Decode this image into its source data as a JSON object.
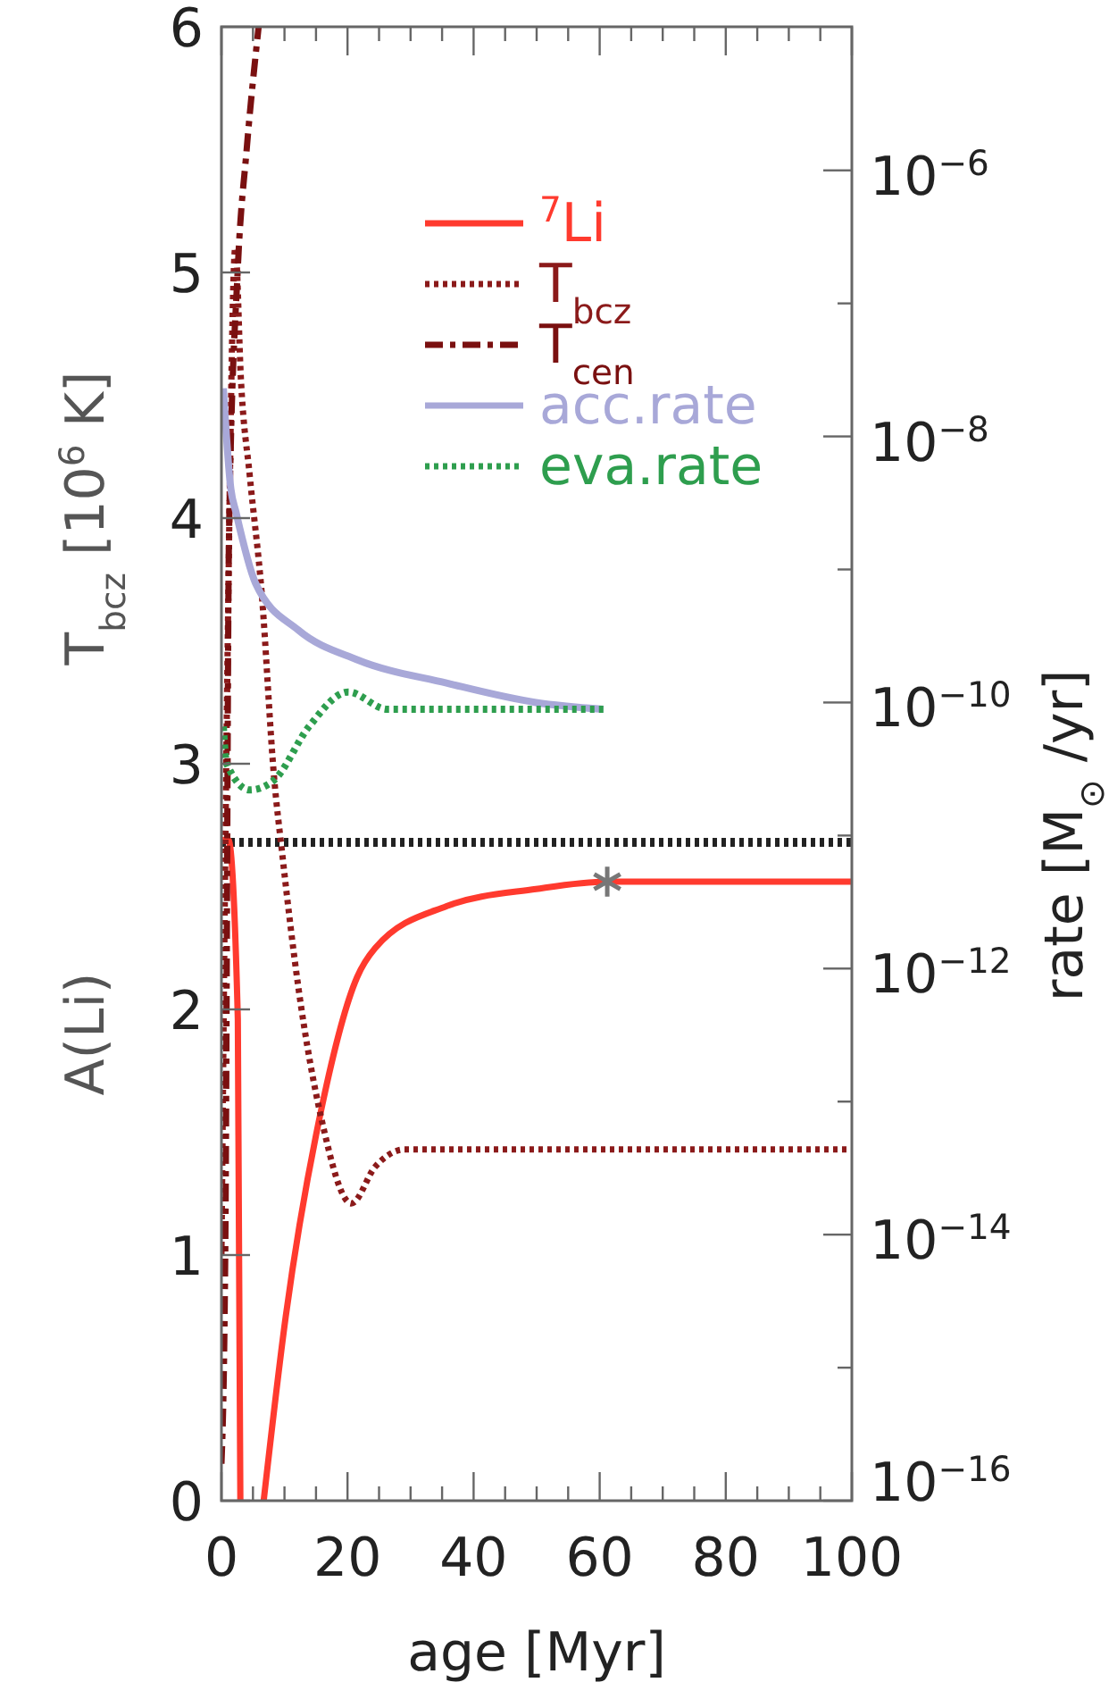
{
  "chart_data": {
    "type": "line",
    "xlabel": "age [Myr]",
    "ylabel": "T$_{bcz}$ [10$^{6}$ K]",
    "y2label": "rate [M$_{⊙}$ /yr]",
    "annotations": [
      "A(Li)"
    ],
    "legend": "top right",
    "log": "y2",
    "xlim": [
      0,
      100
    ],
    "xticks": [
      0,
      {
        "value": 5,
        "label": null
      },
      {
        "value": 10,
        "label": null
      },
      {
        "value": 15,
        "label": null
      },
      20,
      {
        "value": 25,
        "label": null
      },
      {
        "value": 30,
        "label": null
      },
      {
        "value": 35,
        "label": null
      },
      40,
      {
        "value": 45,
        "label": null
      },
      {
        "value": 50,
        "label": null
      },
      {
        "value": 55,
        "label": null
      },
      60,
      {
        "value": 65,
        "label": null
      },
      {
        "value": 70,
        "label": null
      },
      {
        "value": 75,
        "label": null
      },
      80,
      {
        "value": 85,
        "label": null
      },
      {
        "value": 90,
        "label": null
      },
      {
        "value": 95,
        "label": null
      },
      100
    ],
    "ylim": [
      0,
      6
    ],
    "yticks": [
      0,
      1,
      2,
      3,
      4,
      5,
      6
    ],
    "y2lim": [
      1e-16,
      1.2e-05
    ],
    "y2ticks": [
      {
        "value": 1e-16,
        "label": "10$^{−16}$"
      },
      {
        "value": 1e-15,
        "label": null
      },
      {
        "value": 1e-14,
        "label": "10$^{−14}$"
      },
      {
        "value": 1e-13,
        "label": null
      },
      {
        "value": 1e-12,
        "label": "10$^{−12}$"
      },
      {
        "value": 1e-11,
        "label": null
      },
      {
        "value": 1e-10,
        "label": "10$^{−10}$"
      },
      {
        "value": 1e-09,
        "label": null
      },
      {
        "value": 1e-08,
        "label": "10$^{−8}$"
      },
      {
        "value": 1e-07,
        "label": null
      },
      {
        "value": 1e-06,
        "label": "10$^{−6}$"
      }
    ],
    "ref_lines": [
      {
        "axis": "y",
        "value": 2.68,
        "color": "#222222",
        "line_style": "dotted"
      }
    ],
    "series": [
      {
        "name": "$^{7}$Li",
        "color": "#ff3a2e",
        "line_style": "solid",
        "x": [
          0,
          1.1,
          2.6,
          3.0,
          4.5,
          6.7,
          10.2,
          15.9,
          21.5,
          24.4,
          35.7,
          49.9,
          61.2,
          80,
          100
        ],
        "values": [
          2.69,
          2.69,
          1.96,
          0,
          null,
          0,
          0.75,
          1.6,
          2.13,
          2.25,
          2.42,
          2.49,
          2.52,
          2.52,
          2.52
        ]
      },
      {
        "name": "T$_{bcz}$",
        "color": "#8b1a1a",
        "line_style": "dotted",
        "x": [
          0,
          1,
          2.2,
          3.1,
          4.5,
          6.4,
          8.3,
          9.7,
          12.2,
          15.9,
          20.6,
          24.4,
          29.1,
          40,
          100
        ],
        "values": [
          1.0,
          3.5,
          5.1,
          4.56,
          4.17,
          3.69,
          2.96,
          2.62,
          2.09,
          1.55,
          1.21,
          1.36,
          1.43,
          1.43,
          1.43
        ]
      },
      {
        "name": "T$_{cen}$",
        "color": "#7a1010",
        "line_style": "dashed",
        "x": [
          0,
          0.6,
          1.2,
          2.6,
          4,
          5.9
        ],
        "values": [
          0.15,
          1.0,
          3.93,
          5.02,
          5.5,
          6.0
        ]
      },
      {
        "name": "acc.rate",
        "color": "#a8a8d8",
        "line_style": "solid",
        "axis": "y2",
        "x": [
          0.3,
          1.5,
          2.3,
          5.4,
          12.2,
          21.5,
          35.7,
          49.9,
          60.6
        ],
        "values": [
          2.3e-08,
          4e-09,
          2.7e-09,
          7.9e-10,
          3.5e-10,
          2.1e-10,
          1.4e-10,
          1e-10,
          8.9e-11
        ]
      },
      {
        "name": "eva.rate",
        "color": "#2e9e4e",
        "line_style": "dotted",
        "axis": "y2",
        "x": [
          0.3,
          0.8,
          4.5,
          8.3,
          13.9,
          20.1,
          26.3,
          60.6
        ],
        "values": [
          6.6e-11,
          3.5e-11,
          2.2e-11,
          2.6e-11,
          6.6e-11,
          1.2e-10,
          8.9e-11,
          8.9e-11
        ]
      },
      {
        "type": "scatter",
        "marker": "cross",
        "color": "#777777",
        "x": [
          61.2
        ],
        "values": [
          2.52
        ]
      }
    ]
  }
}
